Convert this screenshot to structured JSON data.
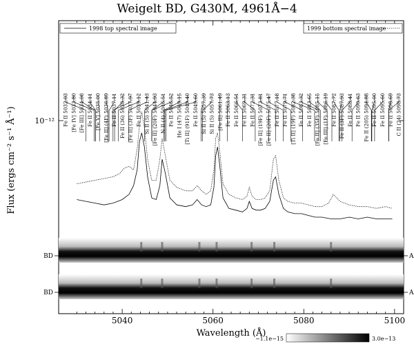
{
  "chart_data": {
    "type": "line",
    "title": "Weigelt BD, G430M, 4961Å−4",
    "xlabel": "Wavelength (Å)",
    "ylabel": "Flux (ergs cm⁻² s⁻¹ Å⁻¹)",
    "xlim": [
      5026,
      5102
    ],
    "x_ticks": [
      5040,
      5060,
      5080,
      5100
    ],
    "y_tick_label": "10⁻¹²",
    "legend": [
      {
        "label": "1998 top spectral image",
        "style": "solid",
        "placement": "top-left"
      },
      {
        "label": "1999 bottom spectral image",
        "style": "dotted",
        "placement": "top-right"
      }
    ],
    "line_ids": [
      {
        "label": "Fe II 5032.03",
        "wl": 5032.03
      },
      {
        "label": "[Fe IV] 5033.80",
        "wl": 5033.8
      },
      {
        "label": "[Fe III] 5034.08",
        "wl": 5034.08
      },
      {
        "label": "Fe II 5034.11",
        "wl": 5034.11
      },
      {
        "label": "[Fe V] 5035.00",
        "wl": 5035.0
      },
      {
        "label": "[Fe II] (4F) 5036.89",
        "wl": 5036.89
      },
      {
        "label": "Fe II 5037.11",
        "wl": 5037.11
      },
      {
        "label": "Fe II (36) 5038.32",
        "wl": 5038.32
      },
      {
        "label": "[Fe II] (3F) 5037.97",
        "wl": 5037.97
      },
      {
        "label": "Fe II 5039.12",
        "wl": 5039.12
      },
      {
        "label": "Si II (5) 5041.43",
        "wl": 5041.43
      },
      {
        "label": "[Fe II] (20F) 5044.93",
        "wl": 5044.93
      },
      {
        "label": "N II (4) 5046.51",
        "wl": 5046.51
      },
      {
        "label": "Fe II 5046.52",
        "wl": 5046.52
      },
      {
        "label": "He I (47) 5049.15",
        "wl": 5049.15
      },
      {
        "label": "[Ti II] (91F) 5049.40",
        "wl": 5049.4
      },
      {
        "label": "Fe II 5049.60",
        "wl": 5049.6
      },
      {
        "label": "Si II (5) 5057.39",
        "wl": 5057.39
      },
      {
        "label": "Si II (5) 5057.73",
        "wl": 5057.73
      },
      {
        "label": "[Fe II] 5061.49",
        "wl": 5061.49
      },
      {
        "label": "Fe II 5063.13",
        "wl": 5063.13
      },
      {
        "label": "Fe II 5066.51",
        "wl": 5066.51
      },
      {
        "label": "Fe II 5069.31",
        "wl": 5069.31
      },
      {
        "label": "Fe II 5072.31",
        "wl": 5072.31
      },
      {
        "label": "[Fe II] (19F) 5073.81",
        "wl": 5073.81
      },
      {
        "label": "[Fe II] (20F) 5075.47",
        "wl": 5075.47
      },
      {
        "label": "Fe II 5077.18",
        "wl": 5077.18
      },
      {
        "label": "Fe II 5079.71",
        "wl": 5079.71
      },
      {
        "label": "[Ti II] (19F) 5082.38",
        "wl": 5082.38
      },
      {
        "label": "Fe II 5083.32",
        "wl": 5083.32
      },
      {
        "label": "Fe II 5083.65",
        "wl": 5083.65
      },
      {
        "label": "[Fe II] (35F) 5085.15",
        "wl": 5085.15
      },
      {
        "label": "[Fe III] (1F) 5086.19",
        "wl": 5086.19
      },
      {
        "label": "Fe II 5087.72",
        "wl": 5087.72
      },
      {
        "label": "Fe II (3F) 5087.93",
        "wl": 5087.93
      },
      {
        "label": "Fe II 5088.41",
        "wl": 5088.41
      },
      {
        "label": "Fe II 5090.63",
        "wl": 5090.63
      },
      {
        "label": "Fe II (205) 5094.88",
        "wl": 5094.88
      },
      {
        "label": "Fe II 5095.00",
        "wl": 5095.0
      },
      {
        "label": "Fe II 5095.60",
        "wl": 5095.6
      },
      {
        "label": "Fe II 5098.69",
        "wl": 5098.69
      },
      {
        "label": "C II (24) 5098.73",
        "wl": 5098.73
      }
    ],
    "series": [
      {
        "name": "1998 top spectral image",
        "style": "solid",
        "x": [
          5030,
          5032,
          5034,
          5036,
          5038,
          5040,
          5041.5,
          5042.5,
          5043.3,
          5043.8,
          5044.3,
          5044.9,
          5045.6,
          5046.5,
          5047.5,
          5048.3,
          5048.8,
          5049.5,
          5050.5,
          5052,
          5054,
          5055.5,
          5056.5,
          5057.5,
          5058.5,
          5059.5,
          5060.2,
          5060.6,
          5061,
          5061.5,
          5062.2,
          5063.5,
          5065,
          5066.5,
          5067.5,
          5068,
          5068.6,
          5069.5,
          5070.5,
          5071.5,
          5072.5,
          5073.3,
          5073.8,
          5074.5,
          5075.5,
          5076.5,
          5078,
          5079.5,
          5081,
          5082.5,
          5084,
          5086,
          5088,
          5090,
          5092,
          5094,
          5096,
          5098,
          5099.5
        ],
        "y": [
          0.55,
          0.54,
          0.53,
          0.52,
          0.53,
          0.55,
          0.58,
          0.63,
          0.72,
          0.88,
          0.93,
          0.85,
          0.68,
          0.56,
          0.55,
          0.63,
          0.78,
          0.7,
          0.56,
          0.52,
          0.51,
          0.52,
          0.55,
          0.52,
          0.51,
          0.52,
          0.62,
          0.8,
          0.85,
          0.74,
          0.56,
          0.5,
          0.49,
          0.48,
          0.5,
          0.54,
          0.5,
          0.49,
          0.49,
          0.5,
          0.54,
          0.66,
          0.68,
          0.58,
          0.5,
          0.48,
          0.47,
          0.47,
          0.46,
          0.45,
          0.45,
          0.44,
          0.44,
          0.45,
          0.44,
          0.45,
          0.44,
          0.44,
          0.44
        ]
      },
      {
        "name": "1999 bottom spectral image",
        "style": "dotted",
        "x": [
          5030,
          5032,
          5034,
          5036,
          5038,
          5039.5,
          5040.5,
          5041.5,
          5042.5,
          5043.3,
          5043.8,
          5044.3,
          5044.9,
          5045.6,
          5046.5,
          5047.5,
          5048.3,
          5048.8,
          5049.5,
          5050.5,
          5052,
          5054,
          5055.5,
          5056.5,
          5057.5,
          5058.5,
          5059.5,
          5060.2,
          5060.6,
          5061,
          5061.5,
          5062.2,
          5063.5,
          5065,
          5066.5,
          5067.5,
          5068,
          5068.6,
          5069.5,
          5070.5,
          5071.5,
          5072.5,
          5073.3,
          5073.8,
          5074.5,
          5075.5,
          5076.5,
          5078,
          5079.5,
          5081,
          5082.5,
          5084,
          5085.5,
          5086.5,
          5088,
          5090,
          5092,
          5094,
          5096,
          5098,
          5099.5
        ],
        "y": [
          0.64,
          0.65,
          0.66,
          0.67,
          0.68,
          0.7,
          0.73,
          0.74,
          0.72,
          0.84,
          0.97,
          1.05,
          0.96,
          0.78,
          0.66,
          0.66,
          0.78,
          0.9,
          0.8,
          0.66,
          0.62,
          0.6,
          0.6,
          0.63,
          0.6,
          0.58,
          0.6,
          0.72,
          0.9,
          0.93,
          0.82,
          0.64,
          0.58,
          0.56,
          0.55,
          0.57,
          0.62,
          0.57,
          0.55,
          0.55,
          0.56,
          0.6,
          0.78,
          0.8,
          0.66,
          0.56,
          0.54,
          0.53,
          0.53,
          0.52,
          0.51,
          0.51,
          0.53,
          0.58,
          0.54,
          0.52,
          0.51,
          0.51,
          0.5,
          0.51,
          0.5
        ]
      }
    ],
    "spectral_images": [
      {
        "left_label": "BD",
        "right_label": "A"
      },
      {
        "left_label": "BD",
        "right_label": "A"
      }
    ],
    "colorbar": {
      "min_label": "−1.1e−15",
      "max_label": "3.0e−13"
    }
  }
}
